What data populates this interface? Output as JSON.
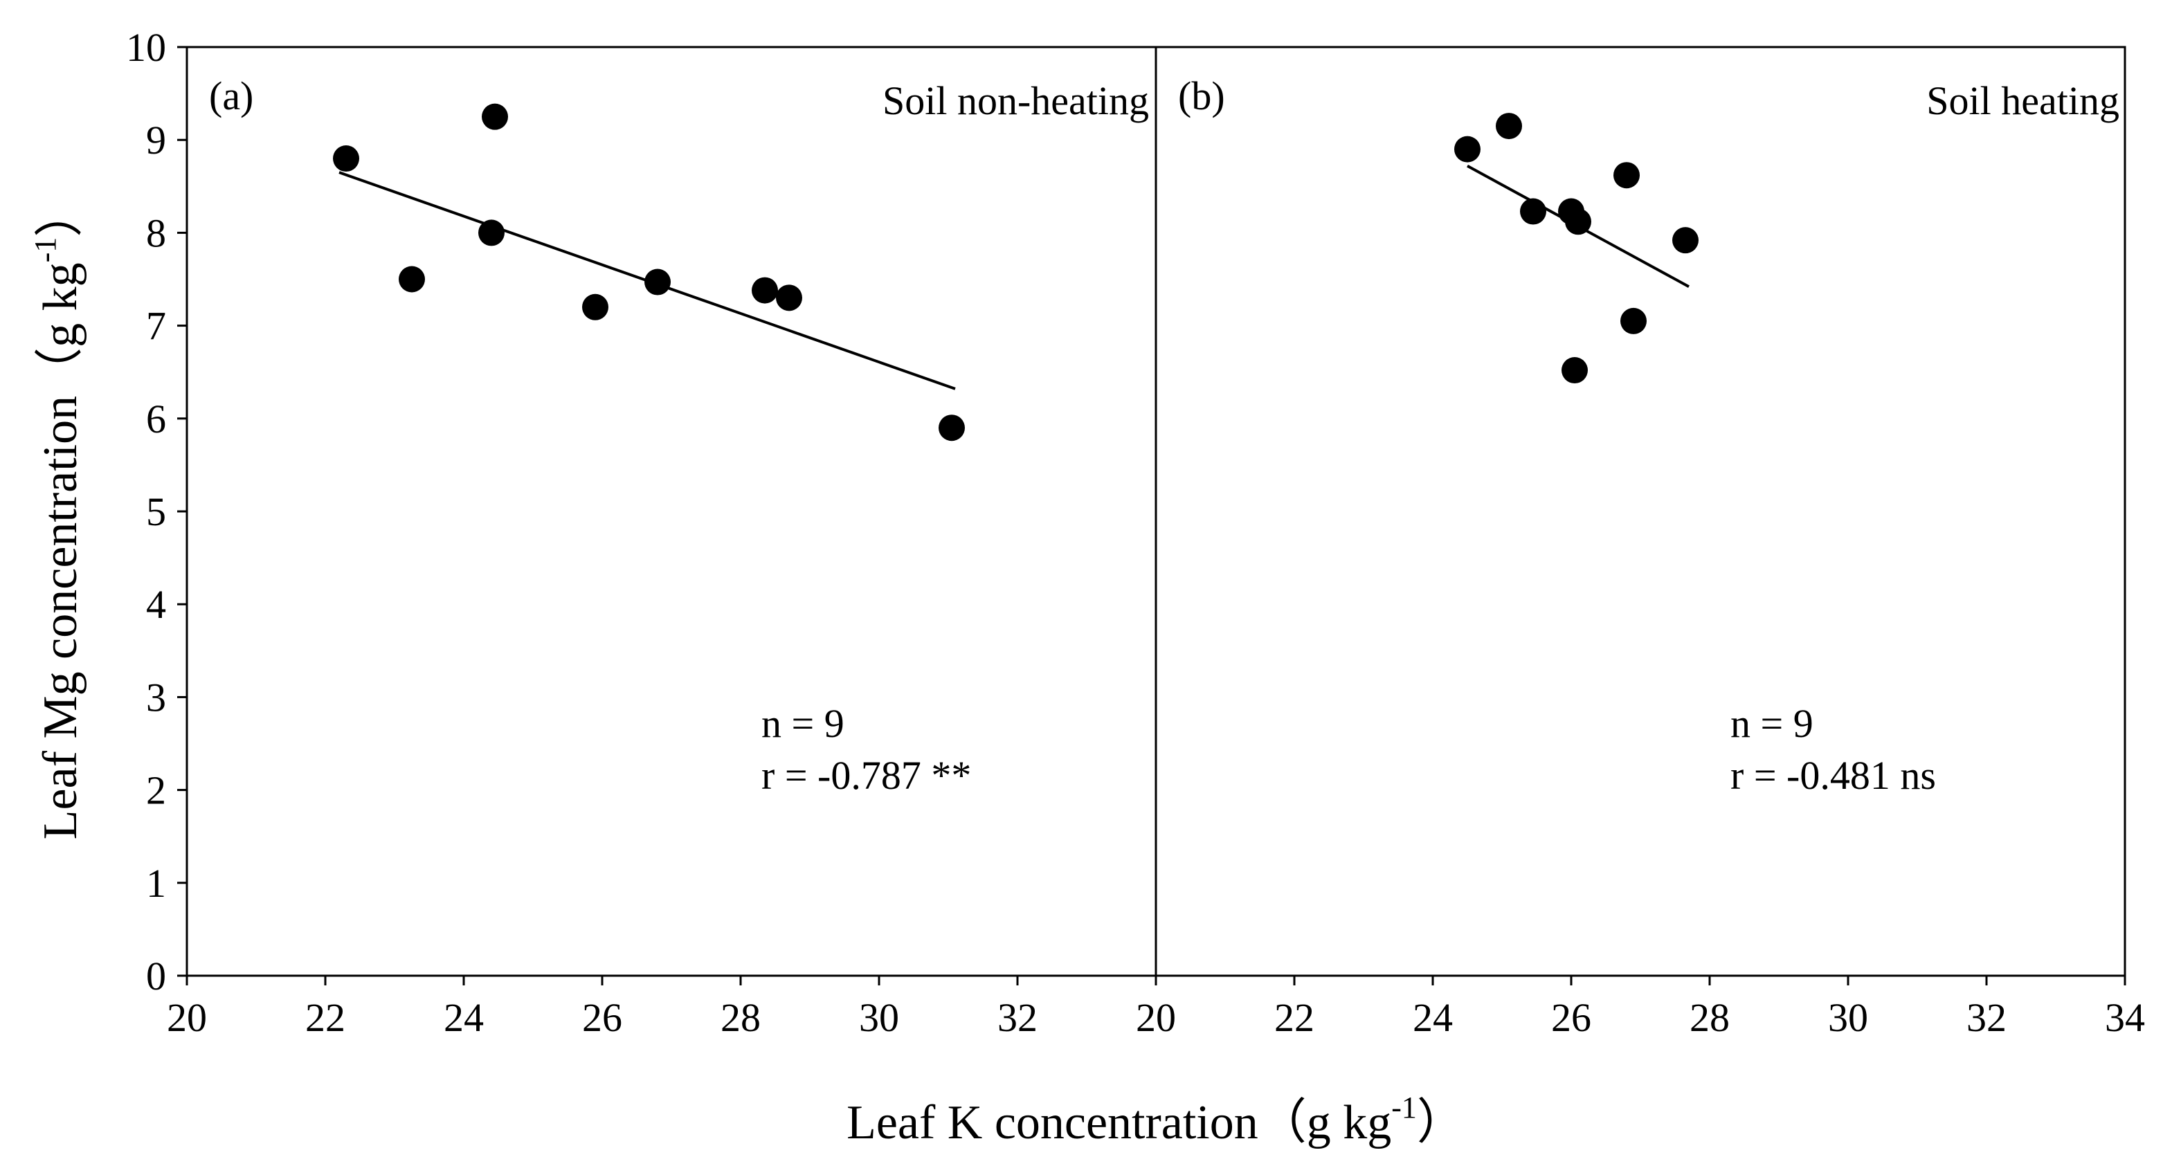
{
  "chart_data": [
    {
      "type": "scatter",
      "panel_label": "(a)",
      "title": "Soil non-heating",
      "xlabel": "Leaf K concentration",
      "xlabel_unit_pre": "（g kg",
      "xlabel_unit_sup": "-1",
      "xlabel_unit_post": "）",
      "ylabel": "Leaf Mg concentration",
      "ylabel_unit_pre": "（g kg",
      "ylabel_unit_sup": "-1",
      "ylabel_unit_post": "）",
      "xlim": [
        20,
        34
      ],
      "ylim": [
        0,
        10
      ],
      "xticks": [
        "20",
        "22",
        "24",
        "26",
        "28",
        "30",
        "32"
      ],
      "yticks": [
        "0",
        "1",
        "2",
        "3",
        "4",
        "5",
        "6",
        "7",
        "8",
        "9",
        "10"
      ],
      "points": [
        {
          "x": 22.3,
          "y": 8.8
        },
        {
          "x": 23.25,
          "y": 7.5
        },
        {
          "x": 24.45,
          "y": 9.25
        },
        {
          "x": 24.4,
          "y": 8.0
        },
        {
          "x": 25.9,
          "y": 7.2
        },
        {
          "x": 26.8,
          "y": 7.47
        },
        {
          "x": 28.35,
          "y": 7.38
        },
        {
          "x": 28.7,
          "y": 7.3
        },
        {
          "x": 31.05,
          "y": 5.9
        }
      ],
      "fit_line": {
        "x1": 22.2,
        "y1": 8.65,
        "x2": 31.1,
        "y2": 6.32
      },
      "n_text": "n = 9",
      "r_text": "r = -0.787 **"
    },
    {
      "type": "scatter",
      "panel_label": "(b)",
      "title": "Soil heating",
      "xlabel": "Leaf K concentration",
      "ylabel": "Leaf Mg concentration",
      "xlim": [
        20,
        34
      ],
      "ylim": [
        0,
        10
      ],
      "xticks": [
        "20",
        "22",
        "24",
        "26",
        "28",
        "30",
        "32",
        "34"
      ],
      "yticks": [],
      "points": [
        {
          "x": 24.5,
          "y": 8.9
        },
        {
          "x": 25.1,
          "y": 9.15
        },
        {
          "x": 25.45,
          "y": 8.23
        },
        {
          "x": 26.0,
          "y": 8.23
        },
        {
          "x": 26.1,
          "y": 8.12
        },
        {
          "x": 26.8,
          "y": 8.62
        },
        {
          "x": 27.65,
          "y": 7.92
        },
        {
          "x": 26.05,
          "y": 6.52
        },
        {
          "x": 26.9,
          "y": 7.05
        }
      ],
      "fit_line": {
        "x1": 24.5,
        "y1": 8.72,
        "x2": 27.7,
        "y2": 7.42
      },
      "n_text": "n = 9",
      "r_text": "r = -0.481 ns"
    }
  ]
}
